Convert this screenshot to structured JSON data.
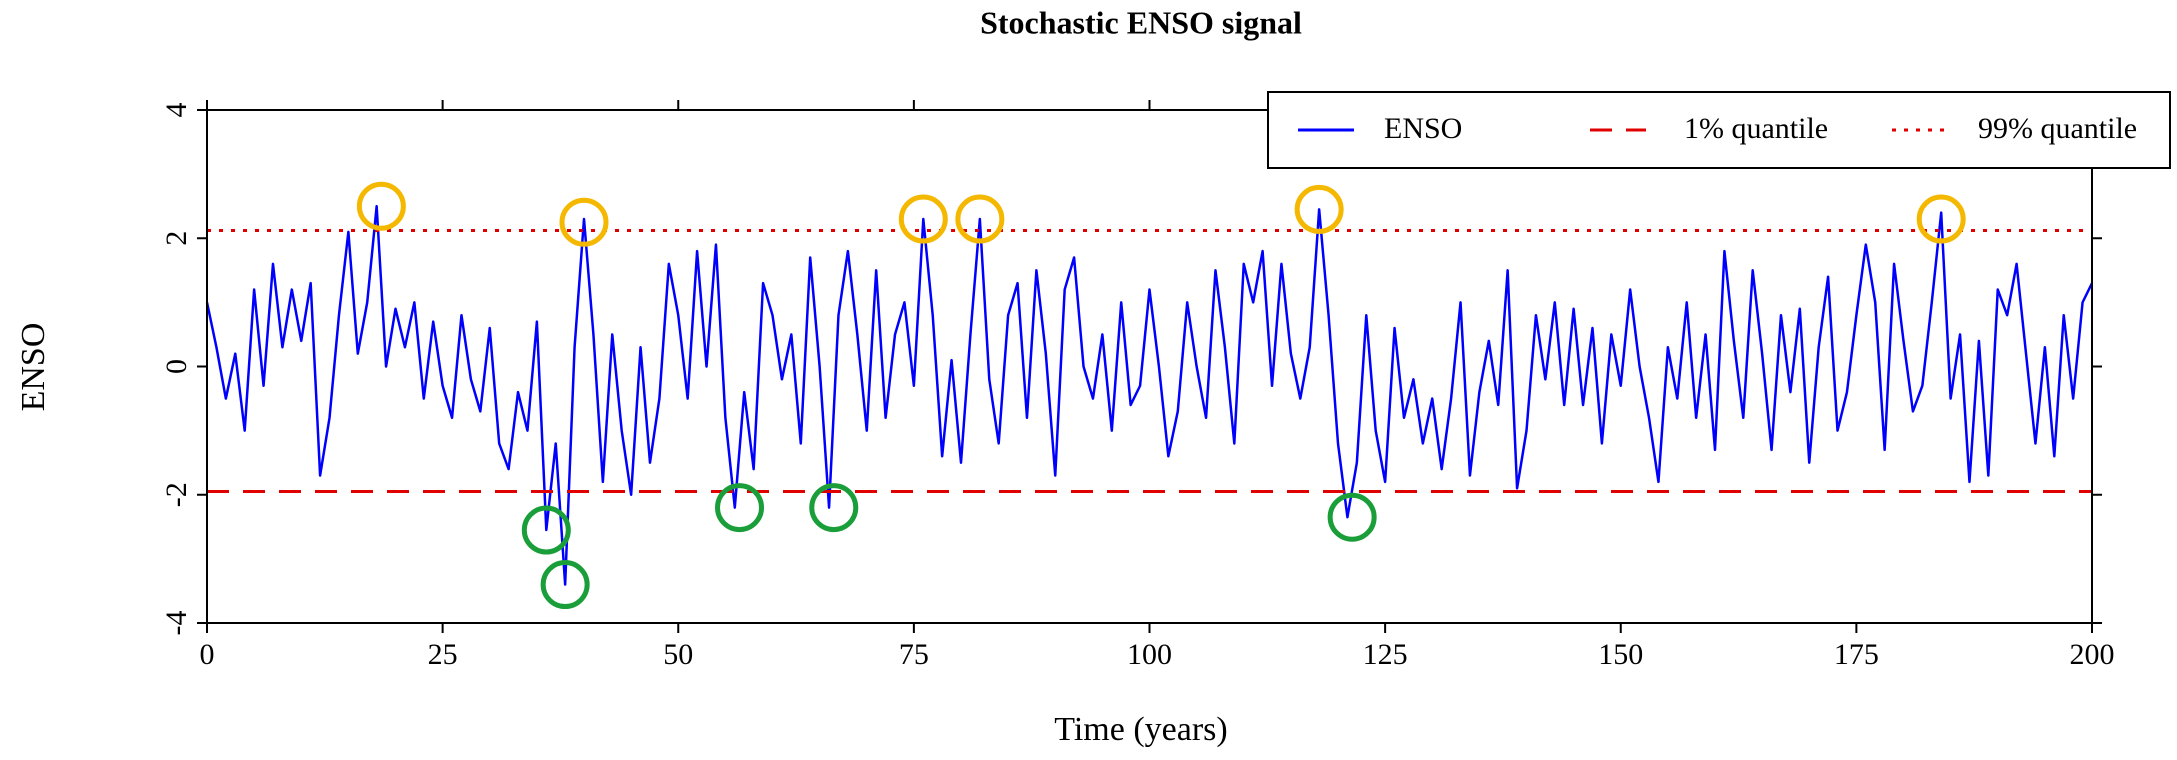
{
  "chart_data": {
    "type": "line",
    "title": "Stochastic ENSO signal",
    "xlabel": "Time (years)",
    "ylabel": "ENSO",
    "x": [
      0,
      1,
      2,
      3,
      4,
      5,
      6,
      7,
      8,
      9,
      10,
      11,
      12,
      13,
      14,
      15,
      16,
      17,
      18,
      19,
      20,
      21,
      22,
      23,
      24,
      25,
      26,
      27,
      28,
      29,
      30,
      31,
      32,
      33,
      34,
      35,
      36,
      37,
      38,
      39,
      40,
      41,
      42,
      43,
      44,
      45,
      46,
      47,
      48,
      49,
      50,
      51,
      52,
      53,
      54,
      55,
      56,
      57,
      58,
      59,
      60,
      61,
      62,
      63,
      64,
      65,
      66,
      67,
      68,
      69,
      70,
      71,
      72,
      73,
      74,
      75,
      76,
      77,
      78,
      79,
      80,
      81,
      82,
      83,
      84,
      85,
      86,
      87,
      88,
      89,
      90,
      91,
      92,
      93,
      94,
      95,
      96,
      97,
      98,
      99,
      100,
      101,
      102,
      103,
      104,
      105,
      106,
      107,
      108,
      109,
      110,
      111,
      112,
      113,
      114,
      115,
      116,
      117,
      118,
      119,
      120,
      121,
      122,
      123,
      124,
      125,
      126,
      127,
      128,
      129,
      130,
      131,
      132,
      133,
      134,
      135,
      136,
      137,
      138,
      139,
      140,
      141,
      142,
      143,
      144,
      145,
      146,
      147,
      148,
      149,
      150,
      151,
      152,
      153,
      154,
      155,
      156,
      157,
      158,
      159,
      160,
      161,
      162,
      163,
      164,
      165,
      166,
      167,
      168,
      169,
      170,
      171,
      172,
      173,
      174,
      175,
      176,
      177,
      178,
      179,
      180,
      181,
      182,
      183,
      184,
      185,
      186,
      187,
      188,
      189,
      190,
      191,
      192,
      193,
      194,
      195,
      196,
      197,
      198,
      199,
      200
    ],
    "series": [
      {
        "name": "ENSO",
        "color": "#0000ff",
        "style": "solid",
        "values": [
          1.0,
          0.3,
          -0.5,
          0.2,
          -1.0,
          1.2,
          -0.3,
          1.6,
          0.3,
          1.2,
          0.4,
          1.3,
          -1.7,
          -0.8,
          0.8,
          2.1,
          0.2,
          1.0,
          2.5,
          0.0,
          0.9,
          0.3,
          1.0,
          -0.5,
          0.7,
          -0.3,
          -0.8,
          0.8,
          -0.2,
          -0.7,
          0.6,
          -1.2,
          -1.6,
          -0.4,
          -1.0,
          0.7,
          -2.55,
          -1.2,
          -3.4,
          0.3,
          2.3,
          0.5,
          -1.8,
          0.5,
          -1.0,
          -2.0,
          0.3,
          -1.5,
          -0.5,
          1.6,
          0.8,
          -0.5,
          1.8,
          0.0,
          1.9,
          -0.8,
          -2.2,
          -0.4,
          -1.6,
          1.3,
          0.8,
          -0.2,
          0.5,
          -1.2,
          1.7,
          0.0,
          -2.2,
          0.8,
          1.8,
          0.5,
          -1.0,
          1.5,
          -0.8,
          0.5,
          1.0,
          -0.3,
          2.3,
          0.8,
          -1.4,
          0.1,
          -1.5,
          0.5,
          2.3,
          -0.2,
          -1.2,
          0.8,
          1.3,
          -0.8,
          1.5,
          0.2,
          -1.7,
          1.2,
          1.7,
          0.0,
          -0.5,
          0.5,
          -1.0,
          1.0,
          -0.6,
          -0.3,
          1.2,
          0.0,
          -1.4,
          -0.7,
          1.0,
          0.0,
          -0.8,
          1.5,
          0.3,
          -1.2,
          1.6,
          1.0,
          1.8,
          -0.3,
          1.6,
          0.2,
          -0.5,
          0.3,
          2.45,
          0.8,
          -1.2,
          -2.35,
          -1.5,
          0.8,
          -1.0,
          -1.8,
          0.6,
          -0.8,
          -0.2,
          -1.2,
          -0.5,
          -1.6,
          -0.5,
          1.0,
          -1.7,
          -0.4,
          0.4,
          -0.6,
          1.5,
          -1.9,
          -1.0,
          0.8,
          -0.2,
          1.0,
          -0.6,
          0.9,
          -0.6,
          0.6,
          -1.2,
          0.5,
          -0.3,
          1.2,
          0.0,
          -0.8,
          -1.8,
          0.3,
          -0.5,
          1.0,
          -0.8,
          0.5,
          -1.3,
          1.8,
          0.4,
          -0.8,
          1.5,
          0.2,
          -1.3,
          0.8,
          -0.4,
          0.9,
          -1.5,
          0.3,
          1.4,
          -1.0,
          -0.4,
          0.8,
          1.9,
          1.0,
          -1.3,
          1.6,
          0.4,
          -0.7,
          -0.3,
          1.0,
          2.4,
          -0.5,
          0.5,
          -1.8,
          0.4,
          -1.7,
          1.2,
          0.8,
          1.6,
          0.2,
          -1.2,
          0.3,
          -1.4,
          0.8,
          -0.5,
          1.0,
          1.3
        ]
      },
      {
        "name": "1% quantile",
        "color": "#e00000",
        "style": "dashed",
        "value": -1.95
      },
      {
        "name": "99% quantile",
        "color": "#e00000",
        "style": "dotted",
        "value": 2.12
      }
    ],
    "highlights": [
      {
        "color": "#f5b800",
        "x": [
          18.5,
          40,
          76,
          82,
          118,
          184
        ],
        "y": [
          2.5,
          2.25,
          2.3,
          2.3,
          2.45,
          2.3
        ]
      },
      {
        "color": "#1a9e3a",
        "x": [
          36,
          38,
          56.5,
          66.5,
          121.5
        ],
        "y": [
          -2.55,
          -3.4,
          -2.2,
          -2.2,
          -2.35
        ]
      }
    ],
    "xlim": [
      0,
      200
    ],
    "xticks": [
      0,
      25,
      50,
      75,
      100,
      125,
      150,
      175,
      200
    ],
    "ylim": [
      -4,
      4
    ],
    "yticks": [
      -4,
      -2,
      0,
      2,
      4
    ],
    "legend": "top-right"
  }
}
